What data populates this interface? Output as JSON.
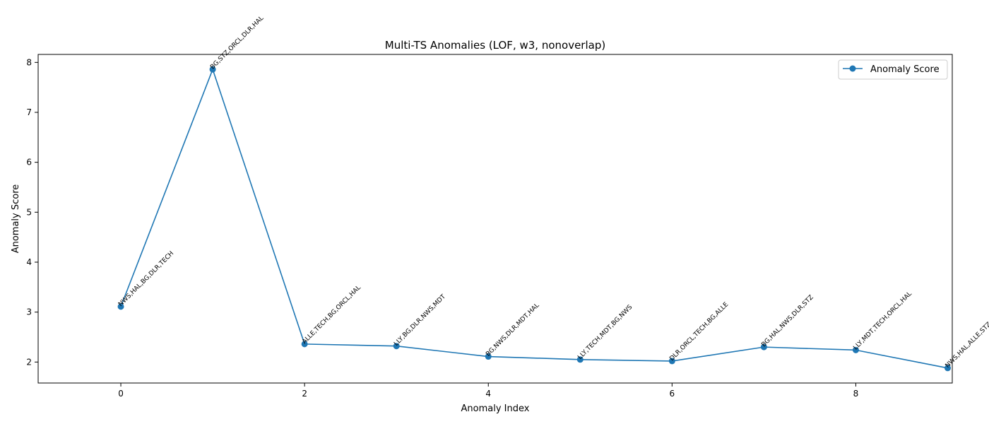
{
  "chart_data": {
    "type": "line",
    "title": "Multi-TS Anomalies (LOF, w3, nonoverlap)",
    "xlabel": "Anomaly Index",
    "ylabel": "Anomaly Score",
    "xlim": [
      -0.9,
      9.05
    ],
    "ylim": [
      1.58,
      8.16
    ],
    "xticks": [
      0,
      2,
      4,
      6,
      8
    ],
    "yticks": [
      2,
      3,
      4,
      5,
      6,
      7,
      8
    ],
    "legend_position": "upper-right",
    "grid": false,
    "series": [
      {
        "name": "Anomaly Score",
        "color": "#1f77b4",
        "marker": "circle",
        "x": [
          0,
          1,
          2,
          3,
          4,
          5,
          6,
          7,
          8,
          9
        ],
        "values": [
          3.11,
          7.86,
          2.36,
          2.32,
          2.11,
          2.05,
          2.02,
          2.3,
          2.24,
          1.88
        ],
        "point_labels": [
          "NWS,HAL,BG,DLR,TECH",
          "BG,STZ,ORCL,DLR,HAL",
          "ALLE,TECH,BG,ORCL,HAL",
          "LLY,BG,DLR,NWS,MDT",
          "BG,NWS,DLR,MDT,HAL",
          "LLY,TECH,MDT,BG,NWS",
          "DLR,ORCL,TECH,BG,ALLE",
          "BG,HAL,NWS,DLR,STZ",
          "LLY,MDT,TECH,ORCL,HAL",
          "NWS,HAL,ALLE,STZ,BG"
        ]
      }
    ]
  }
}
